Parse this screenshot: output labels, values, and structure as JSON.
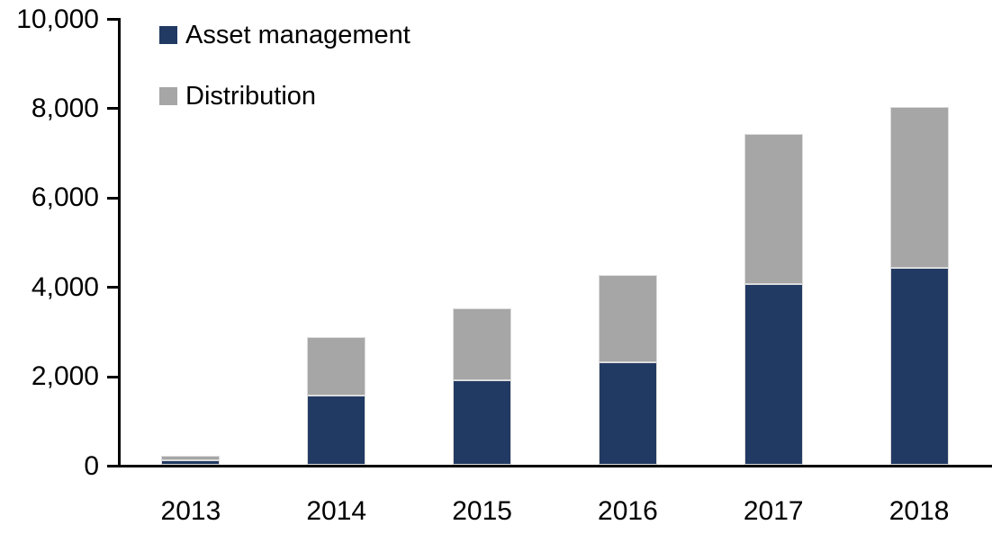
{
  "chart_data": {
    "type": "bar",
    "stacked": true,
    "title": "",
    "xlabel": "",
    "ylabel": "",
    "categories": [
      "2013",
      "2014",
      "2015",
      "2016",
      "2017",
      "2018"
    ],
    "series": [
      {
        "name": "Asset management",
        "color": "#213A63",
        "values": [
          100,
          1550,
          1900,
          2300,
          4050,
          4400
        ]
      },
      {
        "name": "Distribution",
        "color": "#A6A6A6",
        "values": [
          100,
          1300,
          1600,
          1950,
          3350,
          3600
        ]
      }
    ],
    "totals": [
      200,
      2850,
      3500,
      4250,
      7400,
      8000
    ],
    "ylim": [
      0,
      10000
    ],
    "ytick_interval": 2000,
    "ytick_labels": [
      "0",
      "2,000",
      "4,000",
      "6,000",
      "8,000",
      "10,000"
    ],
    "grid": false,
    "legend_position": "top-left-inside",
    "axis_color": "#000000"
  }
}
